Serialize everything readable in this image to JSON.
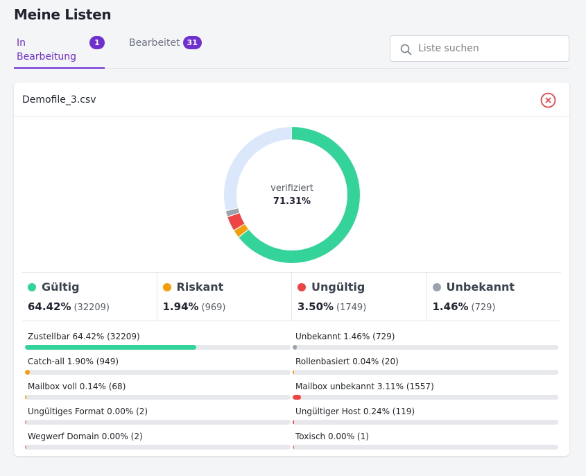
{
  "page": {
    "title": "Meine Listen"
  },
  "tabs": [
    {
      "label": "In Bearbeitung",
      "count": "1",
      "active": true
    },
    {
      "label": "Bearbeitet",
      "count": "31",
      "active": false
    }
  ],
  "search": {
    "placeholder": "Liste suchen",
    "value": ""
  },
  "card": {
    "file_name": "Demofile_3.csv",
    "donut": {
      "label": "verifiziert",
      "value": "71.31%",
      "segments": [
        {
          "name": "Gültig",
          "percent": 64.42,
          "color": "#34d399"
        },
        {
          "name": "Riskant",
          "percent": 1.94,
          "color": "#f59e0b"
        },
        {
          "name": "Ungültig",
          "percent": 3.5,
          "color": "#ef4444"
        },
        {
          "name": "Unbekannt",
          "percent": 1.46,
          "color": "#9ca3af"
        },
        {
          "name": "rest",
          "percent": 28.68,
          "color": "#dbe8fb"
        }
      ]
    },
    "stats": [
      {
        "name": "Gültig",
        "percent": "64.42%",
        "count": "(32209)",
        "color": "#34d399"
      },
      {
        "name": "Riskant",
        "percent": "1.94%",
        "count": "(969)",
        "color": "#f59e0b"
      },
      {
        "name": "Ungültig",
        "percent": "3.50%",
        "count": "(1749)",
        "color": "#ef4444"
      },
      {
        "name": "Unbekannt",
        "percent": "1.46%",
        "count": "(729)",
        "color": "#9ca3af"
      }
    ],
    "breakdown_left": [
      {
        "label": "Zustellbar 64.42% (32209)",
        "percent": 64.42,
        "color": "#34d399"
      },
      {
        "label": "Catch-all 1.90% (949)",
        "percent": 1.9,
        "color": "#f59e0b"
      },
      {
        "label": "Mailbox voll 0.14% (68)",
        "percent": 0.14,
        "color": "#f59e0b"
      },
      {
        "label": "Ungültiges Format 0.00% (2)",
        "percent": 0.0,
        "color": "#ef4444"
      },
      {
        "label": "Wegwerf Domain 0.00% (2)",
        "percent": 0.0,
        "color": "#ef4444"
      }
    ],
    "breakdown_right": [
      {
        "label": "Unbekannt 1.46% (729)",
        "percent": 1.46,
        "color": "#9ca3af"
      },
      {
        "label": "Rollenbasiert 0.04% (20)",
        "percent": 0.04,
        "color": "#f59e0b"
      },
      {
        "label": "Mailbox unbekannt 3.11% (1557)",
        "percent": 3.11,
        "color": "#ef4444"
      },
      {
        "label": "Ungültiger Host 0.24% (119)",
        "percent": 0.24,
        "color": "#ef4444"
      },
      {
        "label": "Toxisch 0.00% (1)",
        "percent": 0.0,
        "color": "#ef4444"
      }
    ]
  }
}
